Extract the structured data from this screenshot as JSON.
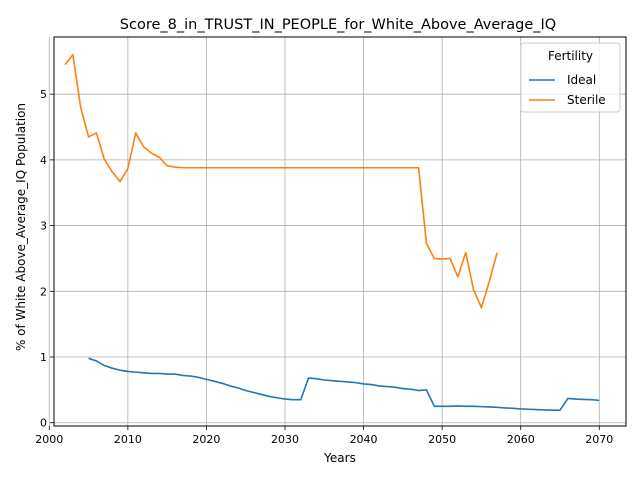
{
  "chart_data": {
    "type": "line",
    "title": "Score_8_in_TRUST_IN_PEOPLE_for_White_Above_Average_IQ",
    "xlabel": "Years",
    "ylabel": "% of White Above_Average_IQ Population",
    "xlim": [
      2000.6,
      2073.4
    ],
    "ylim": [
      -0.05,
      5.87
    ],
    "xticks": [
      2000,
      2010,
      2020,
      2030,
      2040,
      2050,
      2060,
      2070
    ],
    "yticks": [
      0,
      1,
      2,
      3,
      4,
      5
    ],
    "grid": true,
    "legend": {
      "title": "Fertility",
      "position": "top-right"
    },
    "series": [
      {
        "name": "Ideal",
        "color": "#1f77b4",
        "x": [
          2005,
          2006,
          2007,
          2008,
          2009,
          2010,
          2011,
          2012,
          2013,
          2014,
          2015,
          2016,
          2017,
          2018,
          2019,
          2020,
          2021,
          2022,
          2023,
          2024,
          2025,
          2026,
          2027,
          2028,
          2029,
          2030,
          2031,
          2032,
          2033,
          2034,
          2035,
          2036,
          2037,
          2038,
          2039,
          2040,
          2041,
          2042,
          2043,
          2044,
          2045,
          2046,
          2047,
          2048,
          2049,
          2050,
          2051,
          2052,
          2053,
          2054,
          2055,
          2056,
          2057,
          2058,
          2059,
          2060,
          2061,
          2062,
          2063,
          2064,
          2065,
          2066,
          2067,
          2068,
          2069,
          2070
        ],
        "y": [
          0.98,
          0.94,
          0.87,
          0.83,
          0.8,
          0.78,
          0.77,
          0.76,
          0.75,
          0.75,
          0.74,
          0.74,
          0.72,
          0.71,
          0.69,
          0.66,
          0.63,
          0.6,
          0.56,
          0.53,
          0.49,
          0.46,
          0.43,
          0.4,
          0.38,
          0.36,
          0.35,
          0.35,
          0.68,
          0.67,
          0.65,
          0.64,
          0.63,
          0.62,
          0.61,
          0.59,
          0.58,
          0.56,
          0.55,
          0.54,
          0.52,
          0.51,
          0.49,
          0.5,
          0.25,
          0.25,
          0.25,
          0.255,
          0.25,
          0.25,
          0.245,
          0.24,
          0.235,
          0.225,
          0.22,
          0.21,
          0.205,
          0.2,
          0.195,
          0.19,
          0.19,
          0.37,
          0.36,
          0.355,
          0.35,
          0.34
        ]
      },
      {
        "name": "Sterile",
        "color": "#ff7f0e",
        "x": [
          2002,
          2003,
          2004,
          2005,
          2006,
          2007,
          2008,
          2009,
          2010,
          2011,
          2012,
          2013,
          2014,
          2015,
          2016,
          2017,
          2018,
          2019,
          2020,
          2021,
          2022,
          2023,
          2024,
          2025,
          2026,
          2027,
          2028,
          2029,
          2030,
          2031,
          2032,
          2033,
          2034,
          2035,
          2036,
          2037,
          2038,
          2039,
          2040,
          2041,
          2042,
          2043,
          2044,
          2045,
          2046,
          2047,
          2048,
          2049,
          2050,
          2051,
          2052,
          2053,
          2054,
          2055,
          2056,
          2057
        ],
        "y": [
          5.45,
          5.6,
          4.8,
          4.35,
          4.41,
          4.01,
          3.82,
          3.67,
          3.87,
          4.41,
          4.2,
          4.1,
          4.04,
          3.91,
          3.89,
          3.88,
          3.88,
          3.88,
          3.88,
          3.88,
          3.88,
          3.88,
          3.88,
          3.88,
          3.88,
          3.88,
          3.88,
          3.88,
          3.88,
          3.88,
          3.88,
          3.88,
          3.88,
          3.88,
          3.88,
          3.88,
          3.88,
          3.88,
          3.88,
          3.88,
          3.88,
          3.88,
          3.88,
          3.88,
          3.88,
          3.88,
          2.73,
          2.5,
          2.49,
          2.5,
          2.22,
          2.59,
          2.02,
          1.75,
          2.15,
          2.59
        ]
      }
    ]
  }
}
